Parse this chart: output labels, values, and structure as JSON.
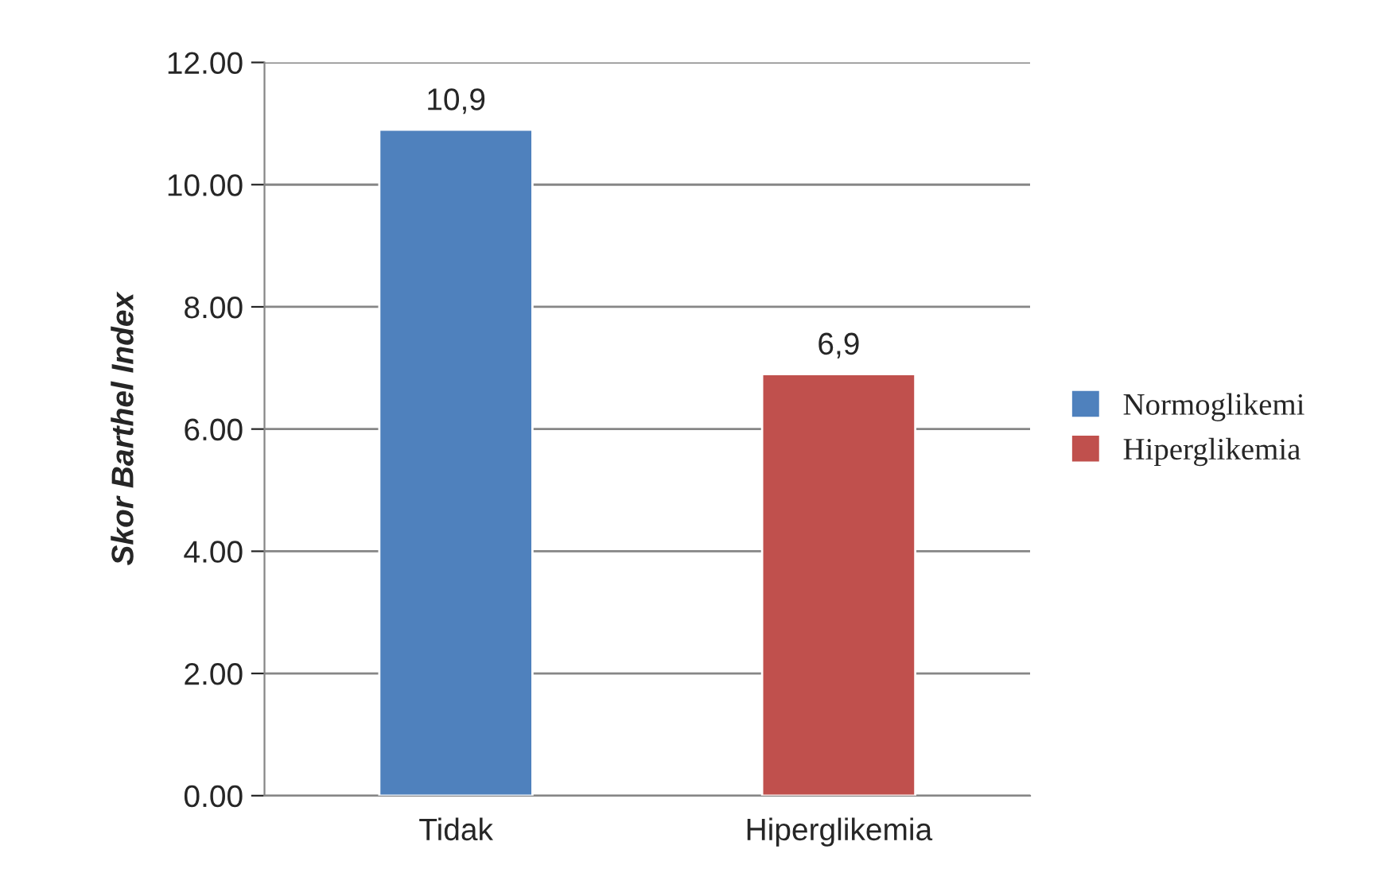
{
  "chart_data": {
    "type": "bar",
    "ylabel": "Skor Barthel Index",
    "categories": [
      "Tidak",
      "Hiperglikemia"
    ],
    "series": [
      {
        "name": "Normoglikemi",
        "color": "#4f81bd",
        "values": [
          10.9,
          null
        ],
        "value_labels": [
          "10,9",
          null
        ]
      },
      {
        "name": "Hiperglikemia",
        "color": "#c0504d",
        "values": [
          null,
          6.9
        ],
        "value_labels": [
          null,
          "6,9"
        ]
      }
    ],
    "ylim": [
      0,
      12
    ],
    "yticks": [
      {
        "value": 0,
        "label": "0.00"
      },
      {
        "value": 2,
        "label": "2.00"
      },
      {
        "value": 4,
        "label": "4.00"
      },
      {
        "value": 6,
        "label": "6.00"
      },
      {
        "value": 8,
        "label": "8.00"
      },
      {
        "value": 10,
        "label": "10.00"
      },
      {
        "value": 12,
        "label": "12.00"
      }
    ],
    "grid": "y",
    "legend": "right"
  }
}
